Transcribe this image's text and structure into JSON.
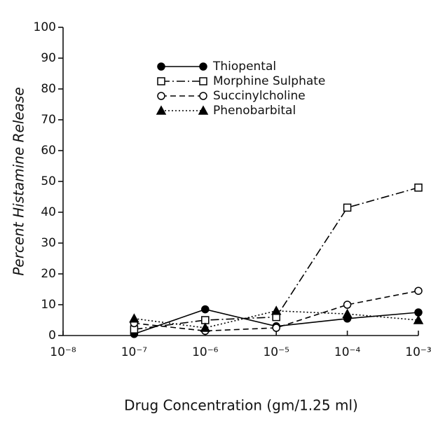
{
  "chart_data": {
    "type": "line",
    "xlabel": "Drug Concentration (gm/1.25 ml)",
    "ylabel": "Percent Histamine Release",
    "x": [
      1e-07,
      1e-06,
      1e-05,
      0.0001,
      0.001
    ],
    "xscale": "log",
    "xlim": [
      1e-08,
      0.001
    ],
    "xticks": [
      {
        "value": 1e-08,
        "label": "10⁻⁸"
      },
      {
        "value": 1e-07,
        "label": "10⁻⁷"
      },
      {
        "value": 1e-06,
        "label": "10⁻⁶"
      },
      {
        "value": 1e-05,
        "label": "10⁻⁵"
      },
      {
        "value": 0.0001,
        "label": "10⁻⁴"
      },
      {
        "value": 0.001,
        "label": "10⁻³"
      }
    ],
    "ylim": [
      0,
      100
    ],
    "yticks": [
      0,
      10,
      20,
      30,
      40,
      50,
      60,
      70,
      80,
      90,
      100
    ],
    "grid": false,
    "legend": "top",
    "series": [
      {
        "name": "Thiopental",
        "color": "#000000",
        "marker": "filled-circle",
        "dash": "solid",
        "values": [
          0.5,
          8.5,
          3,
          5.5,
          7.5
        ]
      },
      {
        "name": "Morphine Sulphate",
        "color": "#000000",
        "marker": "open-square",
        "dash": "dash-dot",
        "values": [
          2,
          5,
          6,
          41.5,
          48
        ]
      },
      {
        "name": "Succinylcholine",
        "color": "#000000",
        "marker": "open-circle",
        "dash": "dashed",
        "values": [
          4,
          1.5,
          2.5,
          10,
          14.5
        ]
      },
      {
        "name": "Phenobarbital",
        "color": "#000000",
        "marker": "filled-triangle",
        "dash": "dotted",
        "values": [
          5.5,
          2.5,
          8,
          7,
          5
        ]
      }
    ]
  }
}
